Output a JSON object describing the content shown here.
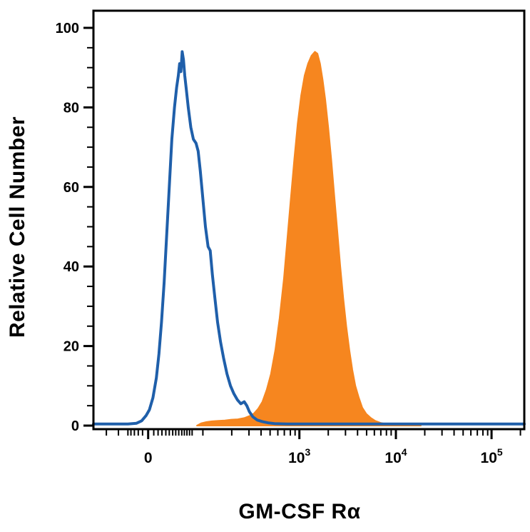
{
  "figure": {
    "title": "",
    "background": "#ffffff"
  },
  "chart_data": {
    "type": "area",
    "subtype": "flow-cytometry-overlay-histogram",
    "title": "",
    "xlabel": "GM-CSF Rα",
    "ylabel": "Relative Cell Number",
    "x_scale": "biexponential-log",
    "ylim": [
      0,
      100
    ],
    "grid": "off",
    "legend": "none",
    "colors": {
      "open_histogram": "#1F5FAA",
      "filled_histogram": "#F6861F",
      "axis": "#000000"
    },
    "y_major_ticks": [
      0,
      20,
      40,
      60,
      80,
      100
    ],
    "y_minor_step": 5,
    "x_major_ticks": [
      {
        "base": "0",
        "exp": "",
        "u": 0.127
      },
      {
        "base": "10",
        "exp": "3",
        "u": 0.478
      },
      {
        "base": "10",
        "exp": "4",
        "u": 0.702
      },
      {
        "base": "10",
        "exp": "5",
        "u": 0.924
      }
    ],
    "x_minor_ticks_u": [
      0.03,
      0.058,
      0.08,
      0.087,
      0.095,
      0.104,
      0.114,
      0.14,
      0.15,
      0.159,
      0.168,
      0.176,
      0.184,
      0.191,
      0.198,
      0.205,
      0.211,
      0.217,
      0.223,
      0.229,
      0.254,
      0.321,
      0.361,
      0.389,
      0.41,
      0.428,
      0.443,
      0.457,
      0.468,
      0.545,
      0.585,
      0.613,
      0.634,
      0.652,
      0.667,
      0.68,
      0.691,
      0.769,
      0.809,
      0.837,
      0.858,
      0.876,
      0.891,
      0.904,
      0.915,
      0.991
    ],
    "series": [
      {
        "name": "blue_open_histogram",
        "style": "open",
        "color": "#1F5FAA",
        "stroke_width": 4,
        "peak_y": 94,
        "points": [
          [
            0.0,
            0.4
          ],
          [
            0.08,
            0.4
          ],
          [
            0.1,
            0.6
          ],
          [
            0.112,
            1.2
          ],
          [
            0.122,
            2.5
          ],
          [
            0.13,
            4
          ],
          [
            0.138,
            7
          ],
          [
            0.146,
            12
          ],
          [
            0.152,
            18
          ],
          [
            0.158,
            26
          ],
          [
            0.164,
            36
          ],
          [
            0.17,
            48
          ],
          [
            0.176,
            60
          ],
          [
            0.182,
            72
          ],
          [
            0.188,
            80
          ],
          [
            0.193,
            85
          ],
          [
            0.197,
            88
          ],
          [
            0.2,
            91
          ],
          [
            0.203,
            89
          ],
          [
            0.206,
            94
          ],
          [
            0.209,
            92
          ],
          [
            0.212,
            88
          ],
          [
            0.216,
            84
          ],
          [
            0.22,
            80
          ],
          [
            0.226,
            75
          ],
          [
            0.232,
            72
          ],
          [
            0.238,
            71
          ],
          [
            0.243,
            69
          ],
          [
            0.248,
            64
          ],
          [
            0.254,
            57
          ],
          [
            0.26,
            50
          ],
          [
            0.266,
            45
          ],
          [
            0.271,
            44
          ],
          [
            0.276,
            38
          ],
          [
            0.282,
            32
          ],
          [
            0.288,
            26
          ],
          [
            0.295,
            21
          ],
          [
            0.302,
            17
          ],
          [
            0.31,
            13
          ],
          [
            0.318,
            10
          ],
          [
            0.326,
            8
          ],
          [
            0.334,
            6.5
          ],
          [
            0.342,
            5.5
          ],
          [
            0.35,
            6
          ],
          [
            0.356,
            5
          ],
          [
            0.362,
            3.5
          ],
          [
            0.37,
            2.2
          ],
          [
            0.38,
            1.4
          ],
          [
            0.392,
            1.0
          ],
          [
            0.405,
            0.7
          ],
          [
            0.42,
            0.5
          ],
          [
            0.45,
            0.4
          ],
          [
            1.0,
            0.4
          ]
        ]
      },
      {
        "name": "orange_filled_histogram",
        "style": "filled",
        "color": "#F6861F",
        "stroke_width": 2,
        "peak_y": 94,
        "points": [
          [
            0.24,
            0
          ],
          [
            0.25,
            0.6
          ],
          [
            0.262,
            0.9
          ],
          [
            0.275,
            1.1
          ],
          [
            0.29,
            1.2
          ],
          [
            0.305,
            1.3
          ],
          [
            0.32,
            1.5
          ],
          [
            0.335,
            1.6
          ],
          [
            0.35,
            1.9
          ],
          [
            0.362,
            2.4
          ],
          [
            0.372,
            3
          ],
          [
            0.382,
            4.2
          ],
          [
            0.392,
            6
          ],
          [
            0.402,
            9
          ],
          [
            0.412,
            13
          ],
          [
            0.422,
            19
          ],
          [
            0.432,
            27
          ],
          [
            0.442,
            37
          ],
          [
            0.45,
            47
          ],
          [
            0.458,
            57
          ],
          [
            0.466,
            67
          ],
          [
            0.474,
            76
          ],
          [
            0.482,
            83
          ],
          [
            0.49,
            88
          ],
          [
            0.498,
            91
          ],
          [
            0.506,
            93
          ],
          [
            0.514,
            94
          ],
          [
            0.52,
            93.5
          ],
          [
            0.526,
            91
          ],
          [
            0.532,
            87
          ],
          [
            0.538,
            82
          ],
          [
            0.545,
            75
          ],
          [
            0.552,
            67
          ],
          [
            0.559,
            58
          ],
          [
            0.566,
            49
          ],
          [
            0.573,
            40
          ],
          [
            0.58,
            32
          ],
          [
            0.587,
            25
          ],
          [
            0.594,
            19
          ],
          [
            0.601,
            14
          ],
          [
            0.608,
            10
          ],
          [
            0.616,
            7
          ],
          [
            0.624,
            4.5
          ],
          [
            0.633,
            3
          ],
          [
            0.643,
            2
          ],
          [
            0.654,
            1.2
          ],
          [
            0.666,
            0.7
          ],
          [
            0.68,
            0.4
          ],
          [
            0.7,
            0.2
          ],
          [
            0.73,
            0.1
          ],
          [
            0.76,
            0
          ]
        ]
      }
    ]
  }
}
